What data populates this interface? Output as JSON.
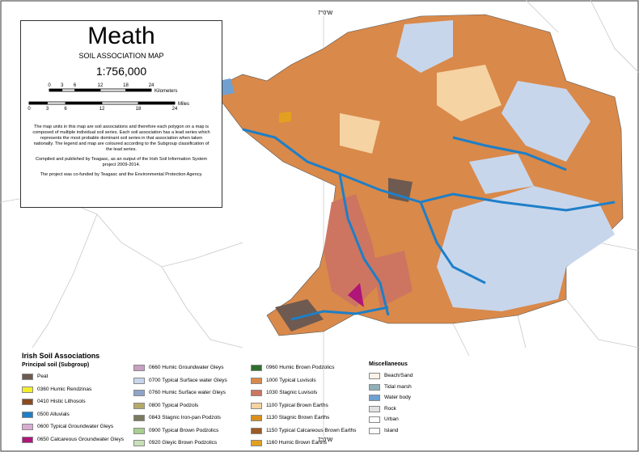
{
  "info": {
    "title": "Meath",
    "subtitle": "SOIL ASSOCIATION MAP",
    "scale": "1:756,000",
    "km_labels": [
      "0",
      "3",
      "6",
      "12",
      "18",
      "24"
    ],
    "km_unit": "Kilometers",
    "miles_labels": [
      "0",
      "3",
      "6",
      "12",
      "18",
      "24"
    ],
    "miles_unit": "Miles",
    "paragraphs": [
      "The map units in this map are soil associations and therefore each polygon on a map is composed of multiple individual soil series. Each soil association has a lead series which represents the most probable dominant soil series in that association when taken nationally. The legend and map are coloured according to the Subgroup classification of the lead series.",
      "Compiled and published by Teagasc, as an output of the Irish Soil Information System project 2009-2014.",
      "The project was co-funded by Teagasc and the Environmental Protection Agency."
    ]
  },
  "graticule": {
    "top": "7°0'W",
    "bottom": "7°0'W"
  },
  "legend": {
    "title": "Irish Soil Associations",
    "subtitle": "Principal soil (Subgroup)",
    "columns": [
      [
        {
          "label": "Peat",
          "color": "#6e5a50"
        },
        {
          "label": "0360  Humic Rendzinas",
          "color": "#f3ee2a"
        },
        {
          "label": "0410  Histic Lithosols",
          "color": "#8b4a1f"
        },
        {
          "label": "0500  Alluvials",
          "color": "#1e7fc8"
        },
        {
          "label": "0600  Typical Groundwater Gleys",
          "color": "#d9acd2"
        },
        {
          "label": "0650  Calcareous Groundwater Gleys",
          "color": "#b0157a"
        }
      ],
      [
        {
          "label": "0660  Humic Groundwater Gleys",
          "color": "#c9a0c0"
        },
        {
          "label": "0700  Typical Surface water Gleys",
          "color": "#c8d6ec"
        },
        {
          "label": "0760  Humic Surface water Gleys",
          "color": "#8fa4c8"
        },
        {
          "label": "0800  Typical Podzols",
          "color": "#b5a96a"
        },
        {
          "label": "0843  Stagnic Iron-pan Podzols",
          "color": "#7a7a60"
        },
        {
          "label": "0900  Typical Brown Podzolics",
          "color": "#a8cf8f"
        },
        {
          "label": "0920  Gleyic Brown Podzolics",
          "color": "#c9e0b8"
        }
      ],
      [
        {
          "label": "0960  Humic Brown Podzolics",
          "color": "#2e6e2e"
        },
        {
          "label": "1000  Typical Luvisols",
          "color": "#d9894a"
        },
        {
          "label": "1030  Stagnic Luvisols",
          "color": "#cd7560"
        },
        {
          "label": "1100  Typical Brown Earths",
          "color": "#f5d3a3"
        },
        {
          "label": "1130  Stagnic Brown Earths",
          "color": "#d9901e"
        },
        {
          "label": "1150  Typical Calcareous Brown Earths",
          "color": "#9c5a25"
        },
        {
          "label": "1160  Humic Brown Earths",
          "color": "#e3a020"
        }
      ]
    ],
    "misc": {
      "title": "Miscellaneous",
      "items": [
        {
          "label": "Beach/Sand",
          "color": "#fbf3ea"
        },
        {
          "label": "Tidal marsh",
          "color": "#8fb0b8"
        },
        {
          "label": "Water body",
          "color": "#6fa0d0"
        },
        {
          "label": "Rock",
          "color": "#e2e2e2"
        },
        {
          "label": "Urban",
          "color": "#ffffff"
        },
        {
          "label": "Island",
          "color": "#ffffff"
        }
      ]
    }
  }
}
